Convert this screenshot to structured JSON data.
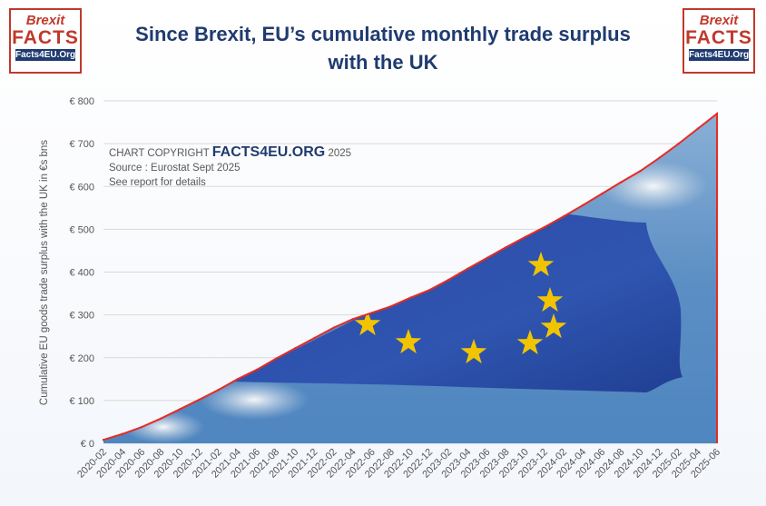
{
  "logo": {
    "line1": "Brexit",
    "line2": "FACTS",
    "line3": "Facts4EU.Org"
  },
  "title": {
    "line1": "Since Brexit, EU’s cumulative monthly trade surplus",
    "line2": "with the UK"
  },
  "annotation": {
    "copyright_prefix": "CHART COPYRIGHT",
    "brand": "FACTS4EU.ORG",
    "year": "2025",
    "source": "Source : Eurostat Sept 2025",
    "details": "See report for details"
  },
  "colors": {
    "line": "#e52b26",
    "title": "#1f3b70",
    "flag_blue": "#2c4ea8",
    "star": "#f2c400"
  },
  "chart_data": {
    "type": "area",
    "title": "Since Brexit, EU’s cumulative monthly trade surplus with the UK",
    "ylabel": "Cumulative EU goods trade surplus with the UK in €s bns",
    "xlabel": "",
    "ylim": [
      0,
      800
    ],
    "yticks": [
      0,
      100,
      200,
      300,
      400,
      500,
      600,
      700,
      800
    ],
    "ytick_labels": [
      "€ 0",
      "€ 100",
      "€ 200",
      "€ 300",
      "€ 400",
      "€ 500",
      "€ 600",
      "€ 700",
      "€ 800"
    ],
    "grid": true,
    "x_tick_labels": [
      "2020-02",
      "2020-04",
      "2020-06",
      "2020-08",
      "2020-10",
      "2020-12",
      "2021-02",
      "2021-04",
      "2021-06",
      "2021-08",
      "2021-10",
      "2021-12",
      "2022-02",
      "2022-04",
      "2022-06",
      "2022-08",
      "2022-10",
      "2022-12",
      "2023-02",
      "2023-04",
      "2023-06",
      "2023-08",
      "2023-10",
      "2023-12",
      "2024-02",
      "2024-04",
      "2024-06",
      "2024-08",
      "2024-10",
      "2024-12",
      "2025-02",
      "2025-04",
      "2025-06"
    ],
    "series": [
      {
        "x": [
          "2020-02",
          "2020-04",
          "2020-06",
          "2020-08",
          "2020-10",
          "2020-12",
          "2021-02",
          "2021-04",
          "2021-06",
          "2021-08",
          "2021-10",
          "2021-12",
          "2022-02",
          "2022-04",
          "2022-06",
          "2022-08",
          "2022-10",
          "2022-12",
          "2023-02",
          "2023-04",
          "2023-06",
          "2023-08",
          "2023-10",
          "2023-12",
          "2024-02",
          "2024-04",
          "2024-06",
          "2024-08",
          "2024-10",
          "2024-12",
          "2025-02",
          "2025-04",
          "2025-06"
        ],
        "values": [
          8,
          22,
          38,
          58,
          80,
          102,
          125,
          150,
          172,
          198,
          222,
          246,
          270,
          290,
          305,
          320,
          340,
          358,
          382,
          408,
          433,
          458,
          482,
          505,
          530,
          556,
          583,
          610,
          636,
          667,
          700,
          735,
          770
        ]
      }
    ]
  }
}
